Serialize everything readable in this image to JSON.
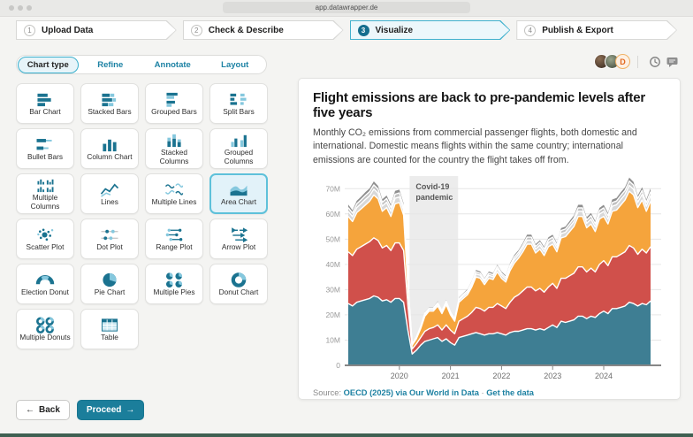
{
  "browser": {
    "url": "app.datawrapper.de"
  },
  "steps": [
    {
      "num": "1",
      "label": "Upload Data",
      "active": false
    },
    {
      "num": "2",
      "label": "Check & Describe",
      "active": false
    },
    {
      "num": "3",
      "label": "Visualize",
      "active": true
    },
    {
      "num": "4",
      "label": "Publish & Export",
      "active": false
    }
  ],
  "tabs": [
    {
      "label": "Chart type",
      "active": true
    },
    {
      "label": "Refine",
      "active": false
    },
    {
      "label": "Annotate",
      "active": false
    },
    {
      "label": "Layout",
      "active": false
    }
  ],
  "chart_types": [
    {
      "label": "Bar Chart",
      "icon": "bar",
      "selected": false
    },
    {
      "label": "Stacked Bars",
      "icon": "stacked-bars",
      "selected": false
    },
    {
      "label": "Grouped Bars",
      "icon": "grouped-bars",
      "selected": false
    },
    {
      "label": "Split Bars",
      "icon": "split-bars",
      "selected": false
    },
    {
      "label": "Bullet Bars",
      "icon": "bullet-bars",
      "selected": false
    },
    {
      "label": "Column Chart",
      "icon": "column",
      "selected": false
    },
    {
      "label": "Stacked Columns",
      "icon": "stacked-columns",
      "selected": false
    },
    {
      "label": "Grouped Columns",
      "icon": "grouped-columns",
      "selected": false
    },
    {
      "label": "Multiple Columns",
      "icon": "multiple-columns",
      "selected": false
    },
    {
      "label": "Lines",
      "icon": "lines",
      "selected": false
    },
    {
      "label": "Multiple Lines",
      "icon": "multiple-lines",
      "selected": false
    },
    {
      "label": "Area Chart",
      "icon": "area",
      "selected": true
    },
    {
      "label": "Scatter Plot",
      "icon": "scatter",
      "selected": false
    },
    {
      "label": "Dot Plot",
      "icon": "dot-plot",
      "selected": false
    },
    {
      "label": "Range Plot",
      "icon": "range-plot",
      "selected": false
    },
    {
      "label": "Arrow Plot",
      "icon": "arrow-plot",
      "selected": false
    },
    {
      "label": "Election Donut",
      "icon": "election-donut",
      "selected": false
    },
    {
      "label": "Pie Chart",
      "icon": "pie",
      "selected": false
    },
    {
      "label": "Multiple Pies",
      "icon": "multiple-pies",
      "selected": false
    },
    {
      "label": "Donut Chart",
      "icon": "donut",
      "selected": false
    },
    {
      "label": "Multiple Donuts",
      "icon": "multiple-donuts",
      "selected": false
    },
    {
      "label": "Table",
      "icon": "table",
      "selected": false
    }
  ],
  "header": {
    "avatar_initial": "D"
  },
  "footer": {
    "back": "Back",
    "proceed": "Proceed",
    "back_arrow": "←",
    "proceed_arrow": "→"
  },
  "preview": {
    "title": "Flight emissions are back to pre-pandemic levels after five years",
    "description": "Monthly CO₂ emissions from commercial passenger flights, both domestic and international. Domestic means flights within the same country; international emissions are counted for the country the flight takes off from.",
    "source_label": "Source:",
    "source_link": "OECD (2025) via Our World in Data",
    "separator": "·",
    "get_data_link": "Get the data"
  },
  "chart_data": {
    "type": "area",
    "stacked": true,
    "title": "Flight emissions are back to pre-pandemic levels after five years",
    "x_start": "2019-01",
    "x_end": "2024-12",
    "x_interval": "monthly",
    "points_per_series": 72,
    "x_domain": [
      2019,
      2025
    ],
    "xticks": [
      2020,
      2021,
      2022,
      2023,
      2024
    ],
    "ylim": [
      0,
      75
    ],
    "yticks": [
      0,
      10,
      20,
      30,
      40,
      50,
      60,
      70
    ],
    "ytick_unit": "M",
    "grid": true,
    "legend": false,
    "annotation": {
      "label_line1": "Covid-19",
      "label_line2": "pandemic",
      "x_from": 2020.2,
      "x_to": 2021.15
    },
    "series": [
      {
        "name": "layer-1-teal",
        "color": "#3e7e93",
        "values": [
          24.5,
          23.5,
          25,
          25.5,
          26,
          26.5,
          27.5,
          27,
          25.5,
          26,
          25,
          26.5,
          26.5,
          25,
          14,
          4.5,
          6,
          8,
          9.5,
          10,
          10.5,
          11,
          9.5,
          10.5,
          9,
          8,
          11,
          11.5,
          12,
          12.5,
          13,
          12.5,
          12,
          12.5,
          12.5,
          13,
          12.5,
          12,
          13,
          13.5,
          13.5,
          14,
          14.5,
          14.5,
          14,
          14.5,
          14,
          15,
          16,
          15,
          17.5,
          17,
          17.5,
          18,
          19.5,
          19.5,
          18.5,
          19.5,
          19,
          20.5,
          21.5,
          20.5,
          22.5,
          22.5,
          23,
          23.5,
          25,
          24.5,
          23.5,
          24.5,
          24,
          25.5
        ]
      },
      {
        "name": "layer-2-red",
        "color": "#d0504b",
        "values": [
          20.5,
          20,
          21,
          21.5,
          22,
          22.5,
          23,
          22.5,
          21,
          21.5,
          20.5,
          22,
          22,
          20.5,
          10,
          2,
          2.5,
          3,
          4,
          4.5,
          4.5,
          5,
          4.5,
          5.5,
          5,
          4.5,
          6.5,
          7,
          7.5,
          8.5,
          10,
          10,
          9.5,
          10.5,
          10.5,
          11.5,
          11,
          10.5,
          12,
          13.5,
          14.5,
          15.5,
          16.5,
          16.5,
          15.5,
          16,
          15,
          16,
          16.5,
          15.5,
          17,
          17.5,
          18,
          18.5,
          19.5,
          19.5,
          18.5,
          19,
          18,
          19.5,
          20,
          19,
          20.5,
          20.5,
          21,
          21.5,
          22.5,
          22,
          20.5,
          21.5,
          20.5,
          21.5
        ]
      },
      {
        "name": "layer-3-orange",
        "color": "#f5a43c",
        "values": [
          14,
          13.5,
          14.5,
          15,
          15.5,
          16,
          17,
          16.5,
          14.5,
          15,
          13.5,
          15.5,
          16,
          14,
          7,
          1.5,
          2,
          3.5,
          6,
          7,
          6.5,
          7.5,
          6.5,
          8,
          6,
          5,
          7.5,
          8,
          8.5,
          10,
          12,
          12,
          10.5,
          11.5,
          11,
          12.5,
          11,
          10.5,
          12.5,
          13.5,
          14.5,
          15.5,
          17,
          17,
          15,
          15.5,
          14.5,
          16,
          15.5,
          14.5,
          16,
          16.5,
          17.5,
          18.5,
          20,
          20,
          17.5,
          17.5,
          16,
          18,
          17.5,
          16.5,
          18,
          18.5,
          19.5,
          20.5,
          21.5,
          21,
          18.5,
          19.5,
          16.5,
          18
        ]
      },
      {
        "name": "layer-4-gray-light",
        "color": "#d8d8d8",
        "values": [
          2,
          1.9,
          2,
          2.1,
          2.2,
          2.2,
          2.3,
          2.2,
          2.1,
          2.1,
          2,
          2.2,
          2.2,
          2,
          1.1,
          0.3,
          0.4,
          0.5,
          0.7,
          0.7,
          0.7,
          0.8,
          0.7,
          0.8,
          0.7,
          0.6,
          0.8,
          0.9,
          0.9,
          1.1,
          1.2,
          1.2,
          1.1,
          1.2,
          1.1,
          1.3,
          1.2,
          1.1,
          1.3,
          1.4,
          1.4,
          1.5,
          1.6,
          1.6,
          1.5,
          1.6,
          1.5,
          1.6,
          1.6,
          1.5,
          1.7,
          1.7,
          1.8,
          1.9,
          2,
          2,
          1.8,
          1.9,
          1.8,
          1.9,
          2,
          1.9,
          2,
          2.1,
          2.2,
          2.2,
          2.3,
          2.3,
          2.1,
          2.2,
          2,
          2.2
        ]
      },
      {
        "name": "layer-5-gray-mid",
        "color": "#c2c2c2",
        "values": [
          1.5,
          1.4,
          1.5,
          1.5,
          1.6,
          1.6,
          1.7,
          1.6,
          1.5,
          1.5,
          1.5,
          1.6,
          1.6,
          1.5,
          0.8,
          0.2,
          0.3,
          0.4,
          0.5,
          0.5,
          0.5,
          0.6,
          0.5,
          0.6,
          0.5,
          0.4,
          0.6,
          0.7,
          0.7,
          0.8,
          0.9,
          0.8,
          0.8,
          0.8,
          0.8,
          0.9,
          0.8,
          0.8,
          0.9,
          1,
          1,
          1.1,
          1.2,
          1.2,
          1.1,
          1.1,
          1.1,
          1.2,
          1.2,
          1.1,
          1.2,
          1.3,
          1.3,
          1.4,
          1.4,
          1.4,
          1.3,
          1.4,
          1.3,
          1.4,
          1.4,
          1.4,
          1.5,
          1.5,
          1.6,
          1.6,
          1.7,
          1.6,
          1.5,
          1.6,
          1.5,
          1.6
        ]
      },
      {
        "name": "layer-6-gray-dark",
        "color": "#8f8f8f",
        "values": [
          1.2,
          1.1,
          1.2,
          1.2,
          1.3,
          1.3,
          1.4,
          1.3,
          1.2,
          1.2,
          1.2,
          1.3,
          1.3,
          1.2,
          0.6,
          0.2,
          0.2,
          0.3,
          0.4,
          0.4,
          0.4,
          0.5,
          0.4,
          0.5,
          0.4,
          0.4,
          0.5,
          0.5,
          0.6,
          0.6,
          0.7,
          0.7,
          0.6,
          0.7,
          0.7,
          0.7,
          0.7,
          0.7,
          0.8,
          0.8,
          0.8,
          0.9,
          1,
          1,
          0.9,
          0.9,
          0.9,
          0.9,
          1,
          0.9,
          1,
          1,
          1.1,
          1.1,
          1.2,
          1.2,
          1.1,
          1.1,
          1.1,
          1.1,
          1.2,
          1.1,
          1.2,
          1.2,
          1.3,
          1.3,
          1.4,
          1.3,
          1.2,
          1.3,
          1.2,
          1.3
        ]
      }
    ]
  }
}
